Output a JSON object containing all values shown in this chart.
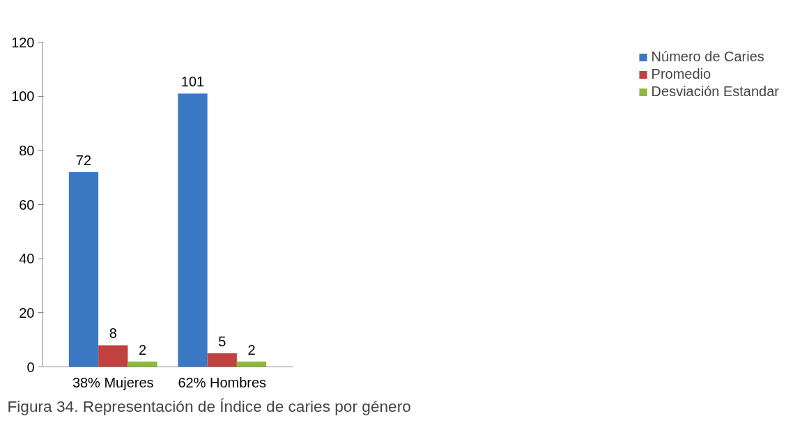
{
  "chart_data": {
    "type": "bar",
    "categories": [
      "38% Mujeres",
      "62% Hombres"
    ],
    "series": [
      {
        "name": "Número de Caries",
        "color": "#3a78c4",
        "values": [
          72,
          101
        ]
      },
      {
        "name": "Promedio",
        "color": "#c0413d",
        "values": [
          8,
          5
        ]
      },
      {
        "name": "Desviación Estandar",
        "color": "#8cbb3c",
        "values": [
          2,
          2
        ]
      }
    ],
    "ylim": [
      0,
      120
    ],
    "yticks": [
      0,
      20,
      40,
      60,
      80,
      100,
      120
    ],
    "data_labels": true,
    "grid": false,
    "legend": "right",
    "annotations": [
      "Figura 34. Representación de Índice de caries por género"
    ]
  }
}
